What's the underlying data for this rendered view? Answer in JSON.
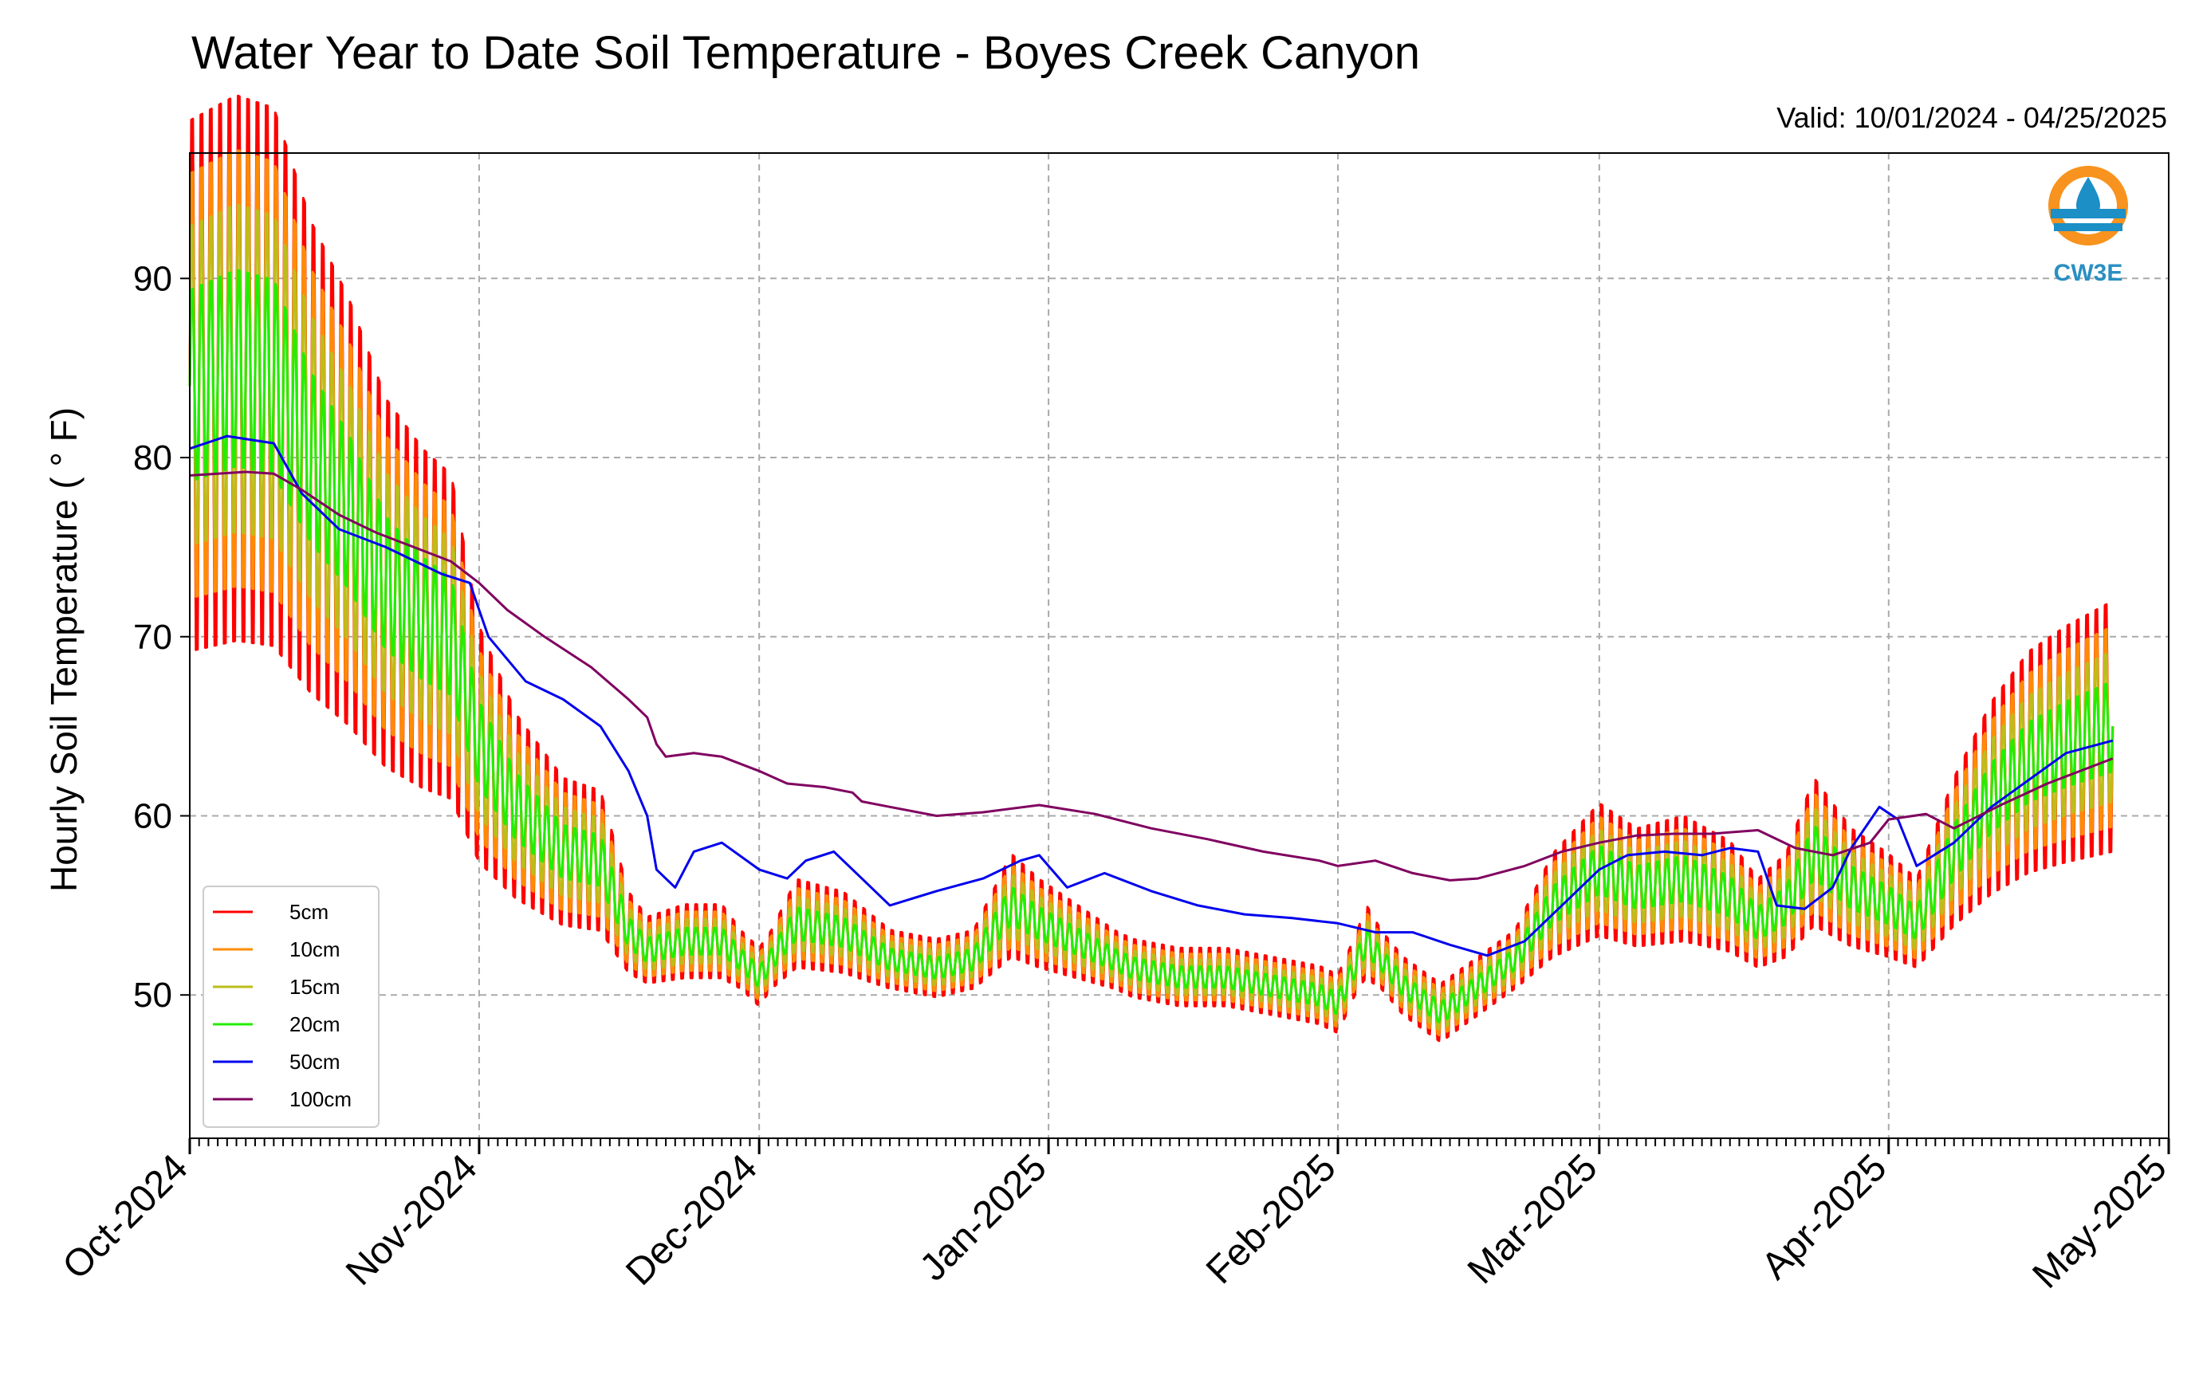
{
  "chart_data": {
    "type": "line",
    "title": "Water Year to Date Soil Temperature - Boyes Creek Canyon",
    "subtitle": "Valid: 10/01/2024 - 04/25/2025",
    "ylabel": "Hourly Soil Temperature ( ° F)",
    "xlabel": "",
    "ylim": [
      42,
      97
    ],
    "xlim": [
      "2024-10-01",
      "2025-05-01"
    ],
    "yticks": [
      50,
      60,
      70,
      80,
      90
    ],
    "x_tick_labels": [
      "Oct-2024",
      "Nov-2024",
      "Dec-2024",
      "Jan-2025",
      "Feb-2025",
      "Mar-2025",
      "Apr-2025",
      "May-2025"
    ],
    "x_tick_dates": [
      "2024-10-01",
      "2024-11-01",
      "2024-12-01",
      "2025-01-01",
      "2025-02-01",
      "2025-03-01",
      "2025-04-01",
      "2025-05-01"
    ],
    "grid": true,
    "legend_position": "lower-left",
    "series": [
      {
        "name": "5cm",
        "color": "#ff0000",
        "amplitude": 1.25,
        "x": [
          "2024-10-01",
          "2024-10-06",
          "2024-10-10",
          "2024-10-14",
          "2024-10-18",
          "2024-10-22",
          "2024-10-26",
          "2024-10-29",
          "2024-11-01",
          "2024-11-05",
          "2024-11-10",
          "2024-11-14",
          "2024-11-17",
          "2024-11-19",
          "2024-11-23",
          "2024-11-27",
          "2024-12-01",
          "2024-12-05",
          "2024-12-10",
          "2024-12-15",
          "2024-12-20",
          "2024-12-24",
          "2024-12-28",
          "2024-12-31",
          "2025-01-04",
          "2025-01-10",
          "2025-01-15",
          "2025-01-20",
          "2025-01-25",
          "2025-01-30",
          "2025-02-01",
          "2025-02-04",
          "2025-02-08",
          "2025-02-12",
          "2025-02-16",
          "2025-02-20",
          "2025-02-24",
          "2025-03-01",
          "2025-03-05",
          "2025-03-10",
          "2025-03-15",
          "2025-03-18",
          "2025-03-21",
          "2025-03-24",
          "2025-03-28",
          "2025-04-01",
          "2025-04-04",
          "2025-04-08",
          "2025-04-12",
          "2025-04-16",
          "2025-04-20",
          "2025-04-25"
        ],
        "y": [
          84,
          85,
          84.5,
          80,
          77,
          73,
          71,
          70,
          64,
          60.5,
          58,
          57.5,
          53.5,
          52.5,
          53,
          53,
          51,
          54,
          53.5,
          52,
          51.5,
          52,
          55,
          54,
          53,
          51.5,
          51,
          51,
          50.5,
          50,
          49.5,
          53,
          50.5,
          49,
          50.5,
          52,
          55,
          57,
          56,
          56.5,
          55.5,
          54,
          55,
          58,
          56,
          55,
          54,
          58,
          61,
          63,
          64,
          65
        ]
      },
      {
        "name": "10cm",
        "color": "#ff8c00",
        "amplitude": 1.0,
        "x": [
          "2024-10-01",
          "2024-10-06",
          "2024-10-10",
          "2024-10-14",
          "2024-10-18",
          "2024-10-22",
          "2024-10-26",
          "2024-10-29",
          "2024-11-01",
          "2024-11-05",
          "2024-11-10",
          "2024-11-14",
          "2024-11-17",
          "2024-11-19",
          "2024-11-23",
          "2024-11-27",
          "2024-12-01",
          "2024-12-05",
          "2024-12-10",
          "2024-12-15",
          "2024-12-20",
          "2024-12-24",
          "2024-12-28",
          "2024-12-31",
          "2025-01-04",
          "2025-01-10",
          "2025-01-15",
          "2025-01-20",
          "2025-01-25",
          "2025-01-30",
          "2025-02-01",
          "2025-02-04",
          "2025-02-08",
          "2025-02-12",
          "2025-02-16",
          "2025-02-20",
          "2025-02-24",
          "2025-03-01",
          "2025-03-05",
          "2025-03-10",
          "2025-03-15",
          "2025-03-18",
          "2025-03-21",
          "2025-03-24",
          "2025-03-28",
          "2025-04-01",
          "2025-04-04",
          "2025-04-08",
          "2025-04-12",
          "2025-04-16",
          "2025-04-20",
          "2025-04-25"
        ],
        "y": [
          84,
          85,
          84.5,
          80,
          77,
          73,
          71,
          70,
          64,
          60.5,
          58,
          57.5,
          53.5,
          52.5,
          53,
          53,
          51,
          54,
          53.5,
          52,
          51.5,
          52,
          55,
          54,
          53,
          51.5,
          51,
          51,
          50.5,
          50,
          49.5,
          53,
          50.5,
          49,
          50.5,
          52,
          55,
          57,
          56,
          56.5,
          55.5,
          54,
          55,
          58,
          56,
          55,
          54,
          58,
          61,
          63,
          64,
          65
        ]
      },
      {
        "name": "15cm",
        "color": "#bdbd1a",
        "amplitude": 0.75,
        "x": [
          "2024-10-01",
          "2024-10-06",
          "2024-10-10",
          "2024-10-14",
          "2024-10-18",
          "2024-10-22",
          "2024-10-26",
          "2024-10-29",
          "2024-11-01",
          "2024-11-05",
          "2024-11-10",
          "2024-11-14",
          "2024-11-17",
          "2024-11-19",
          "2024-11-23",
          "2024-11-27",
          "2024-12-01",
          "2024-12-05",
          "2024-12-10",
          "2024-12-15",
          "2024-12-20",
          "2024-12-24",
          "2024-12-28",
          "2024-12-31",
          "2025-01-04",
          "2025-01-10",
          "2025-01-15",
          "2025-01-20",
          "2025-01-25",
          "2025-01-30",
          "2025-02-01",
          "2025-02-04",
          "2025-02-08",
          "2025-02-12",
          "2025-02-16",
          "2025-02-20",
          "2025-02-24",
          "2025-03-01",
          "2025-03-05",
          "2025-03-10",
          "2025-03-15",
          "2025-03-18",
          "2025-03-21",
          "2025-03-24",
          "2025-03-28",
          "2025-04-01",
          "2025-04-04",
          "2025-04-08",
          "2025-04-12",
          "2025-04-16",
          "2025-04-20",
          "2025-04-25"
        ],
        "y": [
          84,
          85,
          84.5,
          80,
          77,
          73,
          71,
          70,
          64,
          60.5,
          58,
          57.5,
          53.5,
          52.5,
          53,
          53,
          51,
          54,
          53.5,
          52,
          51.5,
          52,
          55,
          54,
          53,
          51.5,
          51,
          51,
          50.5,
          50,
          49.5,
          53,
          50.5,
          49,
          50.5,
          52,
          55,
          57,
          56,
          56.5,
          55.5,
          54,
          55,
          58,
          56,
          55,
          54,
          58,
          61,
          63,
          64,
          65
        ]
      },
      {
        "name": "20cm",
        "color": "#22ee00",
        "amplitude": 0.45,
        "x": [
          "2024-10-01",
          "2024-10-06",
          "2024-10-10",
          "2024-10-14",
          "2024-10-18",
          "2024-10-22",
          "2024-10-26",
          "2024-10-29",
          "2024-11-01",
          "2024-11-05",
          "2024-11-10",
          "2024-11-14",
          "2024-11-17",
          "2024-11-19",
          "2024-11-23",
          "2024-11-27",
          "2024-12-01",
          "2024-12-05",
          "2024-12-10",
          "2024-12-15",
          "2024-12-20",
          "2024-12-24",
          "2024-12-28",
          "2024-12-31",
          "2025-01-04",
          "2025-01-10",
          "2025-01-15",
          "2025-01-20",
          "2025-01-25",
          "2025-01-30",
          "2025-02-01",
          "2025-02-04",
          "2025-02-08",
          "2025-02-12",
          "2025-02-16",
          "2025-02-20",
          "2025-02-24",
          "2025-03-01",
          "2025-03-05",
          "2025-03-10",
          "2025-03-15",
          "2025-03-18",
          "2025-03-21",
          "2025-03-24",
          "2025-03-28",
          "2025-04-01",
          "2025-04-04",
          "2025-04-08",
          "2025-04-12",
          "2025-04-16",
          "2025-04-20",
          "2025-04-25"
        ],
        "y": [
          84,
          85,
          84.5,
          80,
          77,
          73,
          71,
          70,
          64,
          60.5,
          58,
          57.5,
          53.5,
          52.5,
          53,
          53,
          51,
          54,
          53.5,
          52,
          51.5,
          52,
          55,
          54,
          53,
          51.5,
          51,
          51,
          50.5,
          50,
          49.5,
          53,
          50.5,
          49,
          50.5,
          52,
          55,
          57,
          56,
          56.5,
          55.5,
          54,
          55,
          58,
          56,
          55,
          54,
          58,
          61,
          63,
          64,
          65
        ]
      },
      {
        "name": "50cm",
        "color": "#0000ee",
        "amplitude": 0,
        "x": [
          "2024-10-01",
          "2024-10-05",
          "2024-10-10",
          "2024-10-13",
          "2024-10-17",
          "2024-10-22",
          "2024-10-26",
          "2024-10-28",
          "2024-10-31",
          "2024-11-02",
          "2024-11-06",
          "2024-11-10",
          "2024-11-14",
          "2024-11-17",
          "2024-11-19",
          "2024-11-20",
          "2024-11-22",
          "2024-11-24",
          "2024-11-27",
          "2024-12-01",
          "2024-12-04",
          "2024-12-06",
          "2024-12-09",
          "2024-12-12",
          "2024-12-15",
          "2024-12-20",
          "2024-12-25",
          "2024-12-29",
          "2024-12-31",
          "2025-01-03",
          "2025-01-07",
          "2025-01-12",
          "2025-01-17",
          "2025-01-22",
          "2025-01-27",
          "2025-02-01",
          "2025-02-05",
          "2025-02-09",
          "2025-02-13",
          "2025-02-17",
          "2025-02-21",
          "2025-02-25",
          "2025-03-01",
          "2025-03-04",
          "2025-03-08",
          "2025-03-12",
          "2025-03-15",
          "2025-03-18",
          "2025-03-20",
          "2025-03-23",
          "2025-03-26",
          "2025-03-28",
          "2025-03-31",
          "2025-04-02",
          "2025-04-04",
          "2025-04-08",
          "2025-04-12",
          "2025-04-16",
          "2025-04-20",
          "2025-04-25"
        ],
        "y": [
          80.5,
          81.2,
          80.8,
          78,
          76,
          75,
          74,
          73.5,
          73,
          70,
          67.5,
          66.5,
          65,
          62.5,
          60,
          57,
          56,
          58,
          58.5,
          57,
          56.5,
          57.5,
          58,
          56.5,
          55,
          55.8,
          56.5,
          57.5,
          57.8,
          56,
          56.8,
          55.8,
          55,
          54.5,
          54.3,
          54,
          53.5,
          53.5,
          52.8,
          52.2,
          53,
          55,
          57,
          57.8,
          58,
          57.8,
          58.2,
          58,
          55,
          54.8,
          56,
          58.2,
          60.5,
          59.8,
          57.2,
          58.5,
          60.5,
          62,
          63.5,
          64.2
        ]
      },
      {
        "name": "100cm",
        "color": "#800060",
        "amplitude": 0,
        "x": [
          "2024-10-01",
          "2024-10-04",
          "2024-10-07",
          "2024-10-10",
          "2024-10-13",
          "2024-10-17",
          "2024-10-21",
          "2024-10-25",
          "2024-10-29",
          "2024-11-01",
          "2024-11-04",
          "2024-11-08",
          "2024-11-13",
          "2024-11-17",
          "2024-11-19",
          "2024-11-20",
          "2024-11-21",
          "2024-11-24",
          "2024-11-27",
          "2024-12-01",
          "2024-12-04",
          "2024-12-08",
          "2024-12-11",
          "2024-12-12",
          "2024-12-15",
          "2024-12-20",
          "2024-12-25",
          "2024-12-31",
          "2025-01-06",
          "2025-01-12",
          "2025-01-18",
          "2025-01-24",
          "2025-01-30",
          "2025-02-01",
          "2025-02-05",
          "2025-02-09",
          "2025-02-13",
          "2025-02-16",
          "2025-02-21",
          "2025-02-25",
          "2025-03-01",
          "2025-03-05",
          "2025-03-09",
          "2025-03-13",
          "2025-03-18",
          "2025-03-22",
          "2025-03-26",
          "2025-03-30",
          "2025-04-01",
          "2025-04-05",
          "2025-04-08",
          "2025-04-13",
          "2025-04-18",
          "2025-04-25"
        ],
        "y": [
          79,
          79.1,
          79.2,
          79.1,
          78.2,
          76.8,
          75.8,
          75,
          74.2,
          73,
          71.5,
          70,
          68.3,
          66.5,
          65.5,
          64,
          63.3,
          63.5,
          63.3,
          62.5,
          61.8,
          61.6,
          61.3,
          60.8,
          60.5,
          60,
          60.2,
          60.6,
          60.1,
          59.3,
          58.7,
          58,
          57.5,
          57.2,
          57.5,
          56.8,
          56.4,
          56.5,
          57.2,
          58,
          58.5,
          58.9,
          59,
          59,
          59.2,
          58.2,
          57.8,
          58.5,
          59.8,
          60.1,
          59.3,
          60.6,
          61.8,
          63.2
        ]
      }
    ]
  },
  "logo": {
    "text": "CW3E"
  }
}
